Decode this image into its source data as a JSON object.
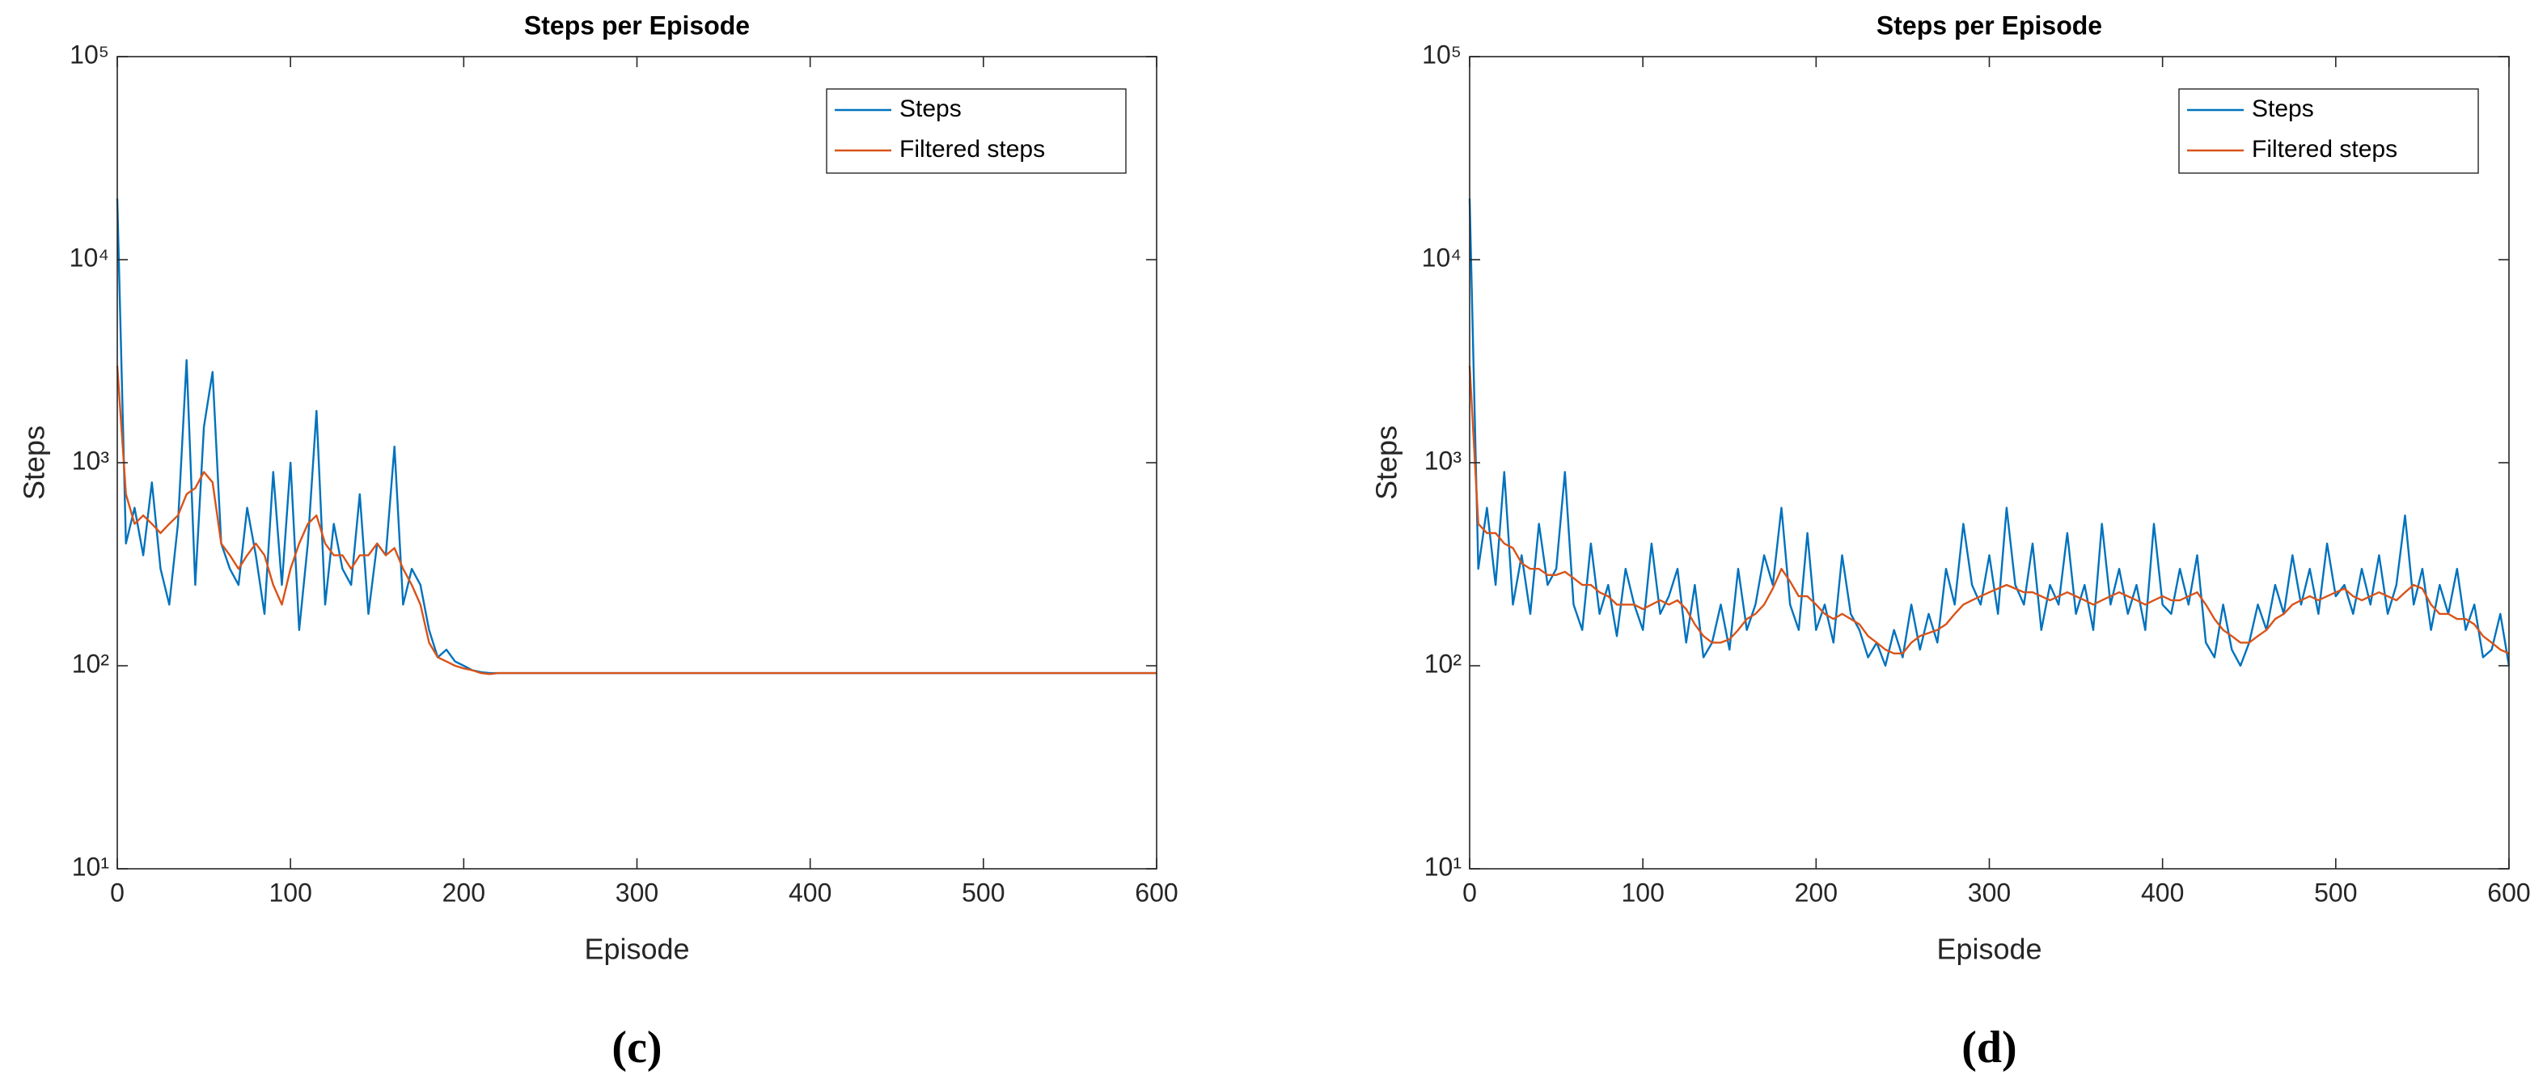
{
  "chart_data": [
    {
      "type": "line",
      "title": "Steps per Episode",
      "xlabel": "Episode",
      "ylabel": "Steps",
      "caption": "(c)",
      "log_y": true,
      "legend": "upper right",
      "xlim": [
        0,
        600
      ],
      "ylim": [
        10,
        100000
      ],
      "xticks": [
        0,
        100,
        200,
        300,
        400,
        500,
        600
      ],
      "yticks": [
        {
          "value": 10,
          "label": "10¹"
        },
        {
          "value": 100,
          "label": "10²"
        },
        {
          "value": 1000,
          "label": "10³"
        },
        {
          "value": 10000,
          "label": "10⁴"
        },
        {
          "value": 100000,
          "label": "10⁵"
        }
      ],
      "x": [
        0,
        5,
        10,
        15,
        20,
        25,
        30,
        35,
        40,
        45,
        50,
        55,
        60,
        65,
        70,
        75,
        80,
        85,
        90,
        95,
        100,
        105,
        110,
        115,
        120,
        125,
        130,
        135,
        140,
        145,
        150,
        155,
        160,
        165,
        170,
        175,
        180,
        185,
        190,
        195,
        200,
        205,
        210,
        215,
        220,
        225,
        230,
        235,
        240,
        245,
        250,
        255,
        260,
        265,
        270,
        275,
        280,
        285,
        290,
        295,
        300,
        305,
        310,
        315,
        320,
        325,
        330,
        335,
        340,
        345,
        350,
        355,
        360,
        365,
        370,
        375,
        380,
        385,
        390,
        395,
        400,
        405,
        410,
        415,
        420,
        425,
        430,
        435,
        440,
        445,
        450,
        455,
        460,
        465,
        470,
        475,
        480,
        485,
        490,
        495,
        500,
        505,
        510,
        515,
        520,
        525,
        530,
        535,
        540,
        545,
        550,
        555,
        560,
        565,
        570,
        575,
        580,
        585,
        590,
        595,
        600
      ],
      "series": [
        {
          "name": "Steps",
          "color": "#0072BD",
          "values": [
            20000,
            400,
            600,
            350,
            800,
            300,
            200,
            500,
            3200,
            250,
            1500,
            2800,
            400,
            300,
            250,
            600,
            350,
            180,
            900,
            250,
            1000,
            150,
            400,
            1800,
            200,
            500,
            300,
            250,
            700,
            180,
            400,
            350,
            1200,
            200,
            300,
            250,
            150,
            110,
            120,
            105,
            100,
            95,
            93,
            92,
            92,
            92,
            92,
            92,
            92,
            92,
            92,
            92,
            92,
            92,
            92,
            92,
            92,
            92,
            92,
            92,
            92,
            92,
            92,
            92,
            92,
            92,
            92,
            92,
            92,
            92,
            92,
            92,
            92,
            92,
            92,
            92,
            92,
            92,
            92,
            92,
            92,
            92,
            92,
            92,
            92,
            92,
            92,
            92,
            92,
            92,
            92,
            92,
            92,
            92,
            92,
            92,
            92,
            92,
            92,
            92,
            92,
            92,
            92,
            92,
            92,
            92,
            92,
            92,
            92,
            92,
            92,
            92,
            92,
            92,
            92,
            92,
            92,
            92,
            92,
            92,
            92
          ]
        },
        {
          "name": "Filtered steps",
          "color": "#D95319",
          "values": [
            3000,
            700,
            500,
            550,
            500,
            450,
            500,
            550,
            700,
            750,
            900,
            800,
            400,
            350,
            300,
            350,
            400,
            350,
            250,
            200,
            300,
            400,
            500,
            550,
            400,
            350,
            350,
            300,
            350,
            350,
            400,
            350,
            380,
            300,
            250,
            200,
            130,
            110,
            105,
            100,
            97,
            95,
            92,
            91,
            92,
            92,
            92,
            92,
            92,
            92,
            92,
            92,
            92,
            92,
            92,
            92,
            92,
            92,
            92,
            92,
            92,
            92,
            92,
            92,
            92,
            92,
            92,
            92,
            92,
            92,
            92,
            92,
            92,
            92,
            92,
            92,
            92,
            92,
            92,
            92,
            92,
            92,
            92,
            92,
            92,
            92,
            92,
            92,
            92,
            92,
            92,
            92,
            92,
            92,
            92,
            92,
            92,
            92,
            92,
            92,
            92,
            92,
            92,
            92,
            92,
            92,
            92,
            92,
            92,
            92,
            92,
            92,
            92,
            92,
            92,
            92,
            92,
            92,
            92,
            92,
            92
          ]
        }
      ]
    },
    {
      "type": "line",
      "title": "Steps per Episode",
      "xlabel": "Episode",
      "ylabel": "Steps",
      "caption": "(d)",
      "log_y": true,
      "legend": "upper right",
      "xlim": [
        0,
        600
      ],
      "ylim": [
        10,
        100000
      ],
      "xticks": [
        0,
        100,
        200,
        300,
        400,
        500,
        600
      ],
      "yticks": [
        {
          "value": 10,
          "label": "10¹"
        },
        {
          "value": 100,
          "label": "10²"
        },
        {
          "value": 1000,
          "label": "10³"
        },
        {
          "value": 10000,
          "label": "10⁴"
        },
        {
          "value": 100000,
          "label": "10⁵"
        }
      ],
      "x": [
        0,
        5,
        10,
        15,
        20,
        25,
        30,
        35,
        40,
        45,
        50,
        55,
        60,
        65,
        70,
        75,
        80,
        85,
        90,
        95,
        100,
        105,
        110,
        115,
        120,
        125,
        130,
        135,
        140,
        145,
        150,
        155,
        160,
        165,
        170,
        175,
        180,
        185,
        190,
        195,
        200,
        205,
        210,
        215,
        220,
        225,
        230,
        235,
        240,
        245,
        250,
        255,
        260,
        265,
        270,
        275,
        280,
        285,
        290,
        295,
        300,
        305,
        310,
        315,
        320,
        325,
        330,
        335,
        340,
        345,
        350,
        355,
        360,
        365,
        370,
        375,
        380,
        385,
        390,
        395,
        400,
        405,
        410,
        415,
        420,
        425,
        430,
        435,
        440,
        445,
        450,
        455,
        460,
        465,
        470,
        475,
        480,
        485,
        490,
        495,
        500,
        505,
        510,
        515,
        520,
        525,
        530,
        535,
        540,
        545,
        550,
        555,
        560,
        565,
        570,
        575,
        580,
        585,
        590,
        595,
        600
      ],
      "series": [
        {
          "name": "Steps",
          "color": "#0072BD",
          "values": [
            20000,
            300,
            600,
            250,
            900,
            200,
            350,
            180,
            500,
            250,
            300,
            900,
            200,
            150,
            400,
            180,
            250,
            140,
            300,
            200,
            150,
            400,
            180,
            220,
            300,
            130,
            250,
            110,
            130,
            200,
            120,
            300,
            150,
            200,
            350,
            250,
            600,
            200,
            150,
            450,
            150,
            200,
            130,
            350,
            180,
            150,
            110,
            130,
            100,
            150,
            110,
            200,
            120,
            180,
            130,
            300,
            200,
            500,
            250,
            200,
            350,
            180,
            600,
            250,
            200,
            400,
            150,
            250,
            200,
            450,
            180,
            250,
            150,
            500,
            200,
            300,
            180,
            250,
            150,
            500,
            200,
            180,
            300,
            200,
            350,
            130,
            110,
            200,
            120,
            100,
            130,
            200,
            150,
            250,
            180,
            350,
            200,
            300,
            180,
            400,
            220,
            250,
            180,
            300,
            200,
            350,
            180,
            250,
            550,
            200,
            300,
            150,
            250,
            180,
            300,
            150,
            200,
            110,
            120,
            180,
            100
          ]
        },
        {
          "name": "Filtered steps",
          "color": "#D95319",
          "values": [
            3000,
            500,
            450,
            450,
            400,
            380,
            320,
            300,
            300,
            280,
            280,
            290,
            270,
            250,
            250,
            230,
            220,
            200,
            200,
            200,
            190,
            200,
            210,
            200,
            210,
            190,
            160,
            140,
            130,
            130,
            135,
            150,
            170,
            180,
            200,
            240,
            300,
            260,
            220,
            220,
            200,
            180,
            170,
            180,
            170,
            160,
            140,
            130,
            120,
            115,
            115,
            130,
            140,
            145,
            150,
            160,
            180,
            200,
            210,
            220,
            230,
            240,
            250,
            240,
            230,
            230,
            220,
            210,
            220,
            230,
            220,
            210,
            200,
            210,
            220,
            230,
            220,
            210,
            200,
            210,
            220,
            210,
            210,
            220,
            230,
            200,
            170,
            150,
            140,
            130,
            130,
            140,
            150,
            170,
            180,
            200,
            210,
            220,
            210,
            220,
            230,
            240,
            220,
            210,
            220,
            230,
            220,
            210,
            230,
            250,
            240,
            200,
            180,
            180,
            170,
            170,
            160,
            140,
            130,
            120,
            115
          ]
        }
      ]
    }
  ]
}
